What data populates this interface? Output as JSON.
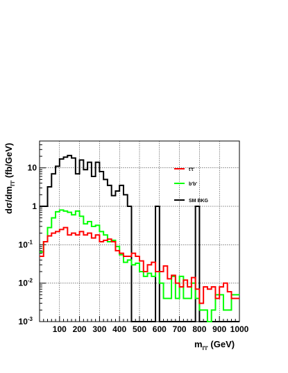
{
  "chart_data": {
    "type": "line",
    "step": true,
    "log_y": true,
    "xlim": [
      0,
      1000
    ],
    "ylim": [
      0.001,
      50
    ],
    "grid": true,
    "legend_position": "top-right",
    "xlabel_main": "m",
    "xlabel_sub": "l'l'",
    "xlabel_unit": " (GeV)",
    "ylabel_main": "dσ/dm",
    "ylabel_sub": "l'l'",
    "ylabel_unit": " (fb/GeV)",
    "x_ticks": [
      100,
      200,
      300,
      400,
      500,
      600,
      700,
      800,
      900,
      1000
    ],
    "y_ticks": [
      {
        "value": 0.001,
        "base": "10",
        "exp": "-3"
      },
      {
        "value": 0.01,
        "base": "10",
        "exp": "-2"
      },
      {
        "value": 0.1,
        "base": "10",
        "exp": "-1"
      },
      {
        "value": 1,
        "base": "1",
        "exp": ""
      },
      {
        "value": 10,
        "base": "10",
        "exp": ""
      }
    ],
    "bin_width": 20,
    "series": [
      {
        "name": "SM BKG",
        "color": "#000000",
        "values": [
          1.0,
          1.0,
          3.2,
          7.0,
          11.0,
          17.0,
          19.0,
          21.0,
          18.0,
          7.0,
          16.0,
          9.0,
          14.0,
          6.0,
          14.0,
          8.0,
          5.0,
          3.5,
          1.9,
          2.5,
          3.5,
          2.0,
          1.0,
          0.001,
          0.001,
          0.001,
          0.001,
          0.001,
          0.001,
          1.0,
          0.001,
          0.001,
          0.001,
          0.001,
          0.001,
          0.001,
          0.001,
          0.001,
          0.001,
          1.0,
          0.001,
          0.001,
          0.001,
          0.001,
          0.001,
          0.001,
          0.001,
          0.001,
          0.001,
          0.001
        ]
      },
      {
        "name": "b'b'",
        "color": "#00ff00",
        "values": [
          0.065,
          0.12,
          0.28,
          0.5,
          0.72,
          0.8,
          0.75,
          0.7,
          0.6,
          0.75,
          0.55,
          0.35,
          0.4,
          0.3,
          0.32,
          0.22,
          0.18,
          0.12,
          0.13,
          0.09,
          0.055,
          0.035,
          0.04,
          0.03,
          0.033,
          0.02,
          0.015,
          0.018,
          0.015,
          0.02,
          0.01,
          0.004,
          0.004,
          0.015,
          0.004,
          0.015,
          0.004,
          0.004,
          0.01,
          0.004,
          0.002,
          0.002,
          0.001,
          0.002,
          0.005,
          0.005,
          0.002,
          0.002,
          0.005,
          0.005
        ]
      },
      {
        "name": "t't'",
        "color": "#ff0000",
        "values": [
          0.05,
          0.12,
          0.17,
          0.2,
          0.22,
          0.25,
          0.28,
          0.18,
          0.2,
          0.18,
          0.22,
          0.18,
          0.2,
          0.15,
          0.18,
          0.12,
          0.13,
          0.14,
          0.12,
          0.07,
          0.06,
          0.05,
          0.05,
          0.06,
          0.05,
          0.038,
          0.02,
          0.03,
          0.035,
          0.02,
          0.02,
          0.028,
          0.013,
          0.016,
          0.01,
          0.008,
          0.012,
          0.008,
          0.014,
          0.007,
          0.003,
          0.008,
          0.007,
          0.008,
          0.004,
          0.008,
          0.01,
          0.006,
          0.004,
          0.004
        ]
      }
    ],
    "legend_order": [
      "t't'",
      "b'b'",
      "SM BKG"
    ]
  }
}
